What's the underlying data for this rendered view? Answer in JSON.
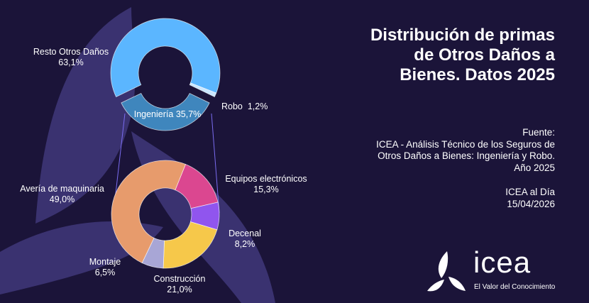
{
  "title": [
    "Distribución de primas",
    "de Otros Daños a",
    "Bienes. Datos 2025"
  ],
  "source": [
    "Fuente:",
    "ICEA - Análisis Técnico de los Seguros de",
    "Otros Daños a Bienes: Ingeniería y Robo.",
    "Año 2025"
  ],
  "date": [
    "ICEA al Día",
    "15/04/2026"
  ],
  "logo": {
    "word": "icea",
    "tagline": "El Valor del Conocimiento"
  },
  "colors": {
    "background": "#1b1439",
    "leaf": "#3a3270"
  },
  "chart_data": [
    {
      "type": "pie",
      "title": "Otros Daños a Bienes",
      "slices": [
        {
          "label": "Resto Otros Daños",
          "value": 63.1,
          "display": "63,1%",
          "color": "#5bb6ff"
        },
        {
          "label": "Robo",
          "value": 1.2,
          "display": "1,2%",
          "color": "#c9e6ff"
        },
        {
          "label": "Ingeniería",
          "value": 35.7,
          "display": "35,7%",
          "color": "#3f86bd",
          "exploded": true
        }
      ]
    },
    {
      "type": "pie",
      "title": "Ingeniería",
      "slices": [
        {
          "label": "Equipos electrónicos",
          "value": 15.3,
          "display": "15,3%",
          "color": "#db4790"
        },
        {
          "label": "Decenal",
          "value": 8.2,
          "display": "8,2%",
          "color": "#9055ee"
        },
        {
          "label": "Construcción",
          "value": 21.0,
          "display": "21,0%",
          "color": "#f6c84a"
        },
        {
          "label": "Montaje",
          "value": 6.5,
          "display": "6,5%",
          "color": "#a8a6d6"
        },
        {
          "label": "Avería de maquinaria",
          "value": 49.0,
          "display": "49,0%",
          "color": "#e79b6c"
        }
      ]
    }
  ]
}
